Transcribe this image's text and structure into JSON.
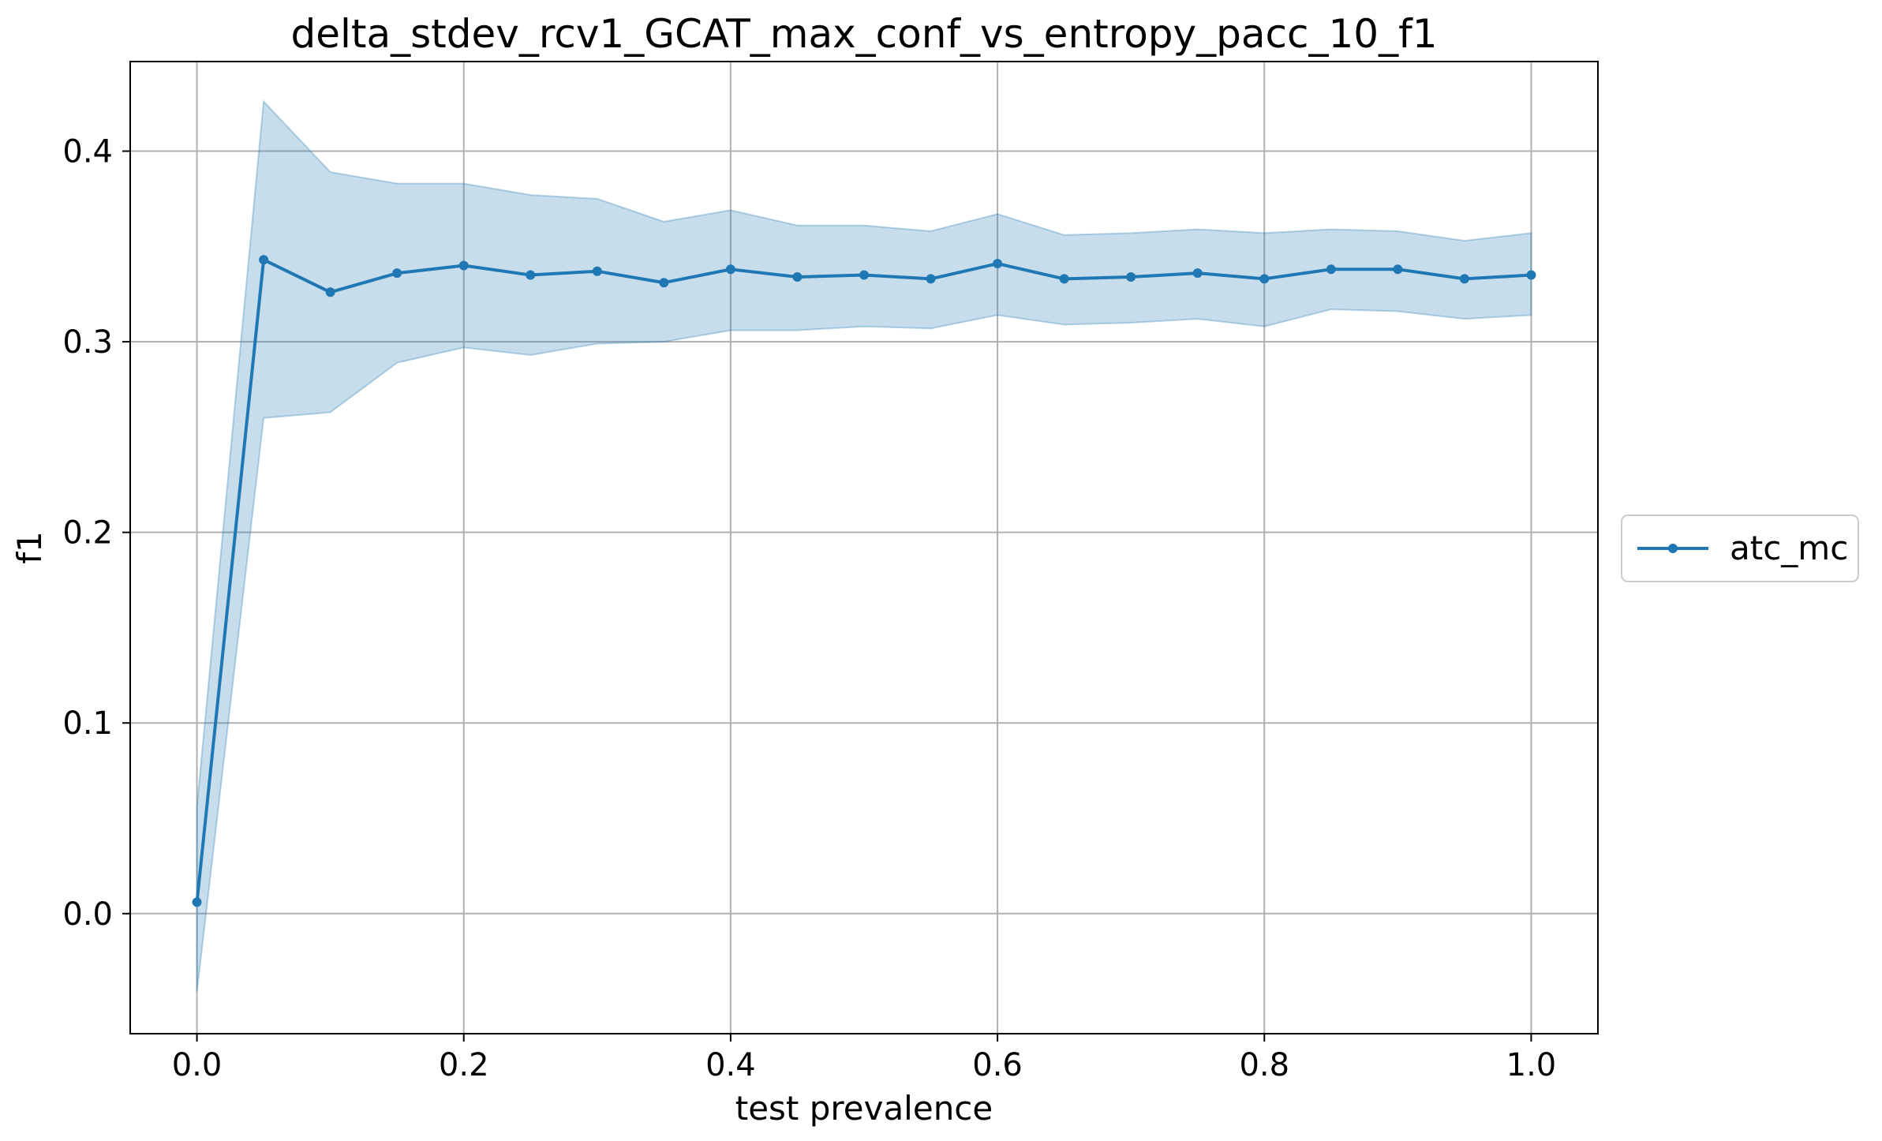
{
  "chart_data": {
    "type": "line",
    "title": "delta_stdev_rcv1_GCAT_max_conf_vs_entropy_pacc_10_f1",
    "xlabel": "test prevalence",
    "ylabel": "f1",
    "xlim": [
      -0.05,
      1.05
    ],
    "ylim": [
      -0.063,
      0.447
    ],
    "xticks": [
      0.0,
      0.2,
      0.4,
      0.6,
      0.8,
      1.0
    ],
    "xtick_labels": [
      "0.0",
      "0.2",
      "0.4",
      "0.6",
      "0.8",
      "1.0"
    ],
    "yticks": [
      0.0,
      0.1,
      0.2,
      0.3,
      0.4
    ],
    "ytick_labels": [
      "0.0",
      "0.1",
      "0.2",
      "0.3",
      "0.4"
    ],
    "grid": true,
    "legend_position": "right-outside",
    "series": [
      {
        "name": "atc_mc",
        "color": "#1f77b4",
        "band_color": "#1f77b4",
        "marker": "circle",
        "x": [
          0.0,
          0.05,
          0.1,
          0.15,
          0.2,
          0.25,
          0.3,
          0.35,
          0.4,
          0.45,
          0.5,
          0.55,
          0.6,
          0.65,
          0.7,
          0.75,
          0.8,
          0.85,
          0.9,
          0.95,
          1.0
        ],
        "y": [
          0.006,
          0.343,
          0.326,
          0.336,
          0.34,
          0.335,
          0.337,
          0.331,
          0.338,
          0.334,
          0.335,
          0.333,
          0.341,
          0.333,
          0.334,
          0.336,
          0.333,
          0.338,
          0.338,
          0.333,
          0.335
        ],
        "y_upper": [
          0.056,
          0.426,
          0.389,
          0.383,
          0.383,
          0.377,
          0.375,
          0.363,
          0.369,
          0.361,
          0.361,
          0.358,
          0.367,
          0.356,
          0.357,
          0.359,
          0.357,
          0.359,
          0.358,
          0.353,
          0.357
        ],
        "y_lower": [
          -0.041,
          0.26,
          0.263,
          0.289,
          0.297,
          0.293,
          0.299,
          0.3,
          0.306,
          0.306,
          0.308,
          0.307,
          0.314,
          0.309,
          0.31,
          0.312,
          0.308,
          0.317,
          0.316,
          0.312,
          0.314
        ]
      }
    ]
  }
}
